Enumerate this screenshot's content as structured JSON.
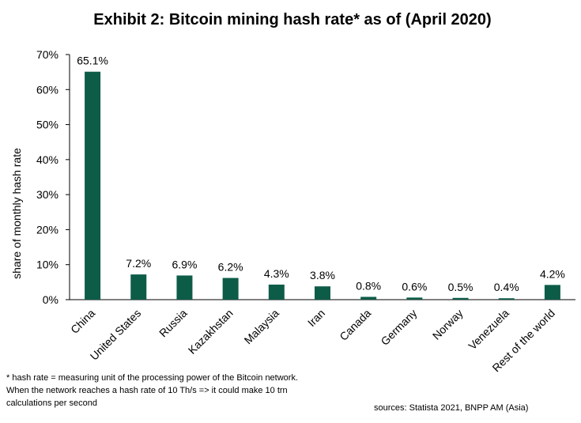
{
  "chart_data": {
    "type": "bar",
    "title": "Exhibit 2: Bitcoin mining hash rate* as of (April 2020)",
    "xlabel": "",
    "ylabel": "share of monthly hash rate",
    "ylim": [
      0,
      70
    ],
    "yticks": [
      0,
      10,
      20,
      30,
      40,
      50,
      60,
      70
    ],
    "ytick_labels": [
      "0%",
      "10%",
      "20%",
      "30%",
      "40%",
      "50%",
      "60%",
      "70%"
    ],
    "categories": [
      "China",
      "United States",
      "Russia",
      "Kazakhstan",
      "Malaysia",
      "Iran",
      "Canada",
      "Germany",
      "Norway",
      "Venezuela",
      "Rest of the world"
    ],
    "values": [
      65.1,
      7.2,
      6.9,
      6.2,
      4.3,
      3.8,
      0.8,
      0.6,
      0.5,
      0.4,
      4.2
    ],
    "data_labels": [
      "65.1%",
      "7.2%",
      "6.9%",
      "6.2%",
      "4.3%",
      "3.8%",
      "0.8%",
      "0.6%",
      "0.5%",
      "0.4%",
      "4.2%"
    ],
    "bar_color": "#0d5c48",
    "grid": false,
    "legend": "none"
  },
  "footnote": "* hash rate = measuring unit of the processing power of the Bitcoin network.  When the network reaches a hash rate of 10 Th/s => it could make 10 trn calculations per second",
  "source": "sources: Statista 2021, BNPP AM (Asia)"
}
